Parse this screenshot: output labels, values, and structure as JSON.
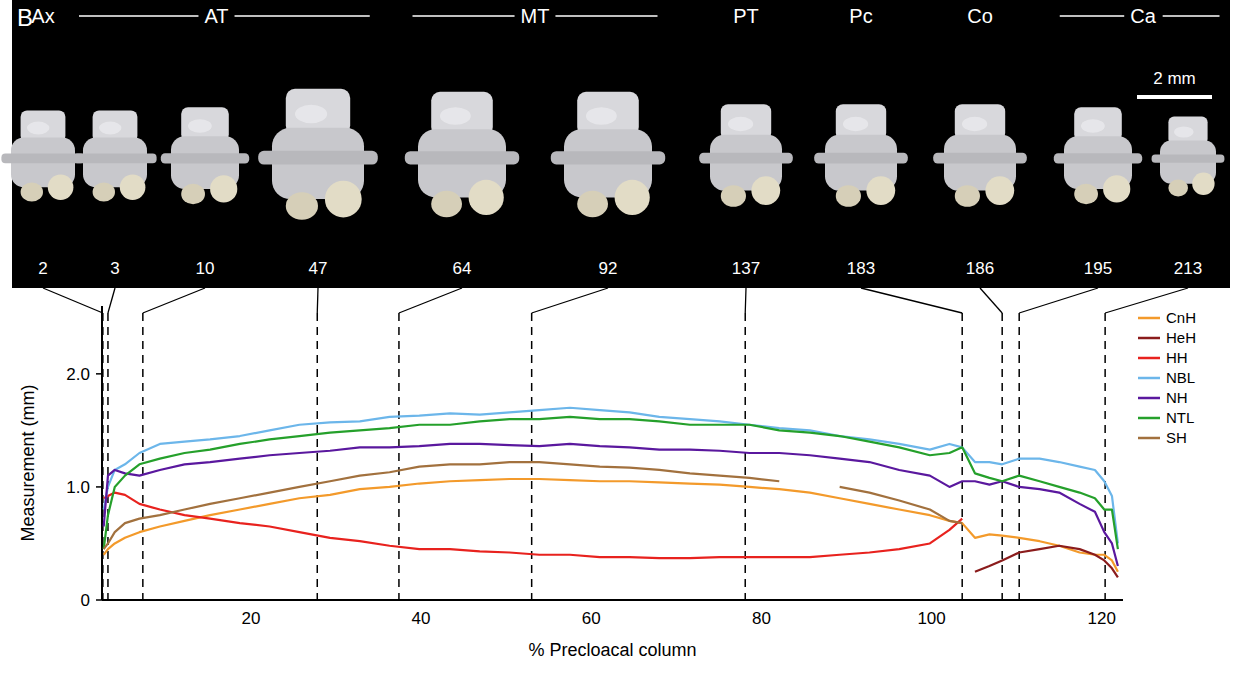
{
  "chart_data": {
    "type": "line",
    "panel_label": "B",
    "scale_bar": "2 mm",
    "xlabel": "% Precloacal column",
    "ylabel": "Measurement (mm)",
    "xlim": [
      2.5,
      122.5
    ],
    "ylim": [
      0,
      2.6
    ],
    "xticks": [
      20,
      40,
      60,
      80,
      100,
      120
    ],
    "yticks": [
      0,
      {
        "value": 1,
        "label": "1.0"
      },
      {
        "value": 2,
        "label": "2.0"
      }
    ],
    "legend": "top-right",
    "line_style": "solid",
    "regions": [
      {
        "label": "Ax",
        "vertebrae": [
          0
        ]
      },
      {
        "label": "AT",
        "vertebrae": [
          1,
          2,
          3
        ]
      },
      {
        "label": "MT",
        "vertebrae": [
          4,
          5
        ]
      },
      {
        "label": "PT",
        "vertebrae": [
          6
        ]
      },
      {
        "label": "Pc",
        "vertebrae": [
          7
        ]
      },
      {
        "label": "Co",
        "vertebrae": [
          8
        ]
      },
      {
        "label": "Ca",
        "vertebrae": [
          9,
          10
        ]
      }
    ],
    "vertebrae": [
      {
        "number": 2,
        "x": 2.6
      },
      {
        "number": 3,
        "x": 3.2
      },
      {
        "number": 10,
        "x": 7.3
      },
      {
        "number": 47,
        "x": 27.8
      },
      {
        "number": 64,
        "x": 37.4
      },
      {
        "number": 92,
        "x": 53.0
      },
      {
        "number": 137,
        "x": 78.1
      },
      {
        "number": 183,
        "x": 103.6
      },
      {
        "number": 186,
        "x": 108.3
      },
      {
        "number": 195,
        "x": 110.3
      },
      {
        "number": 213,
        "x": 120.4
      }
    ],
    "x": [
      2.7,
      3.2,
      4.0,
      5.2,
      6.9,
      9.3,
      12.2,
      15.2,
      18.7,
      22.2,
      25.7,
      29.3,
      32.8,
      36.3,
      39.8,
      43.4,
      46.9,
      50.4,
      53.9,
      57.5,
      61.0,
      64.5,
      68.0,
      71.6,
      75.1,
      78.6,
      82.1,
      85.7,
      89.2,
      92.7,
      96.2,
      99.8,
      102.1,
      103.6,
      105.1,
      106.8,
      108.3,
      110.3,
      112.7,
      115.0,
      117.4,
      119.2,
      120.3,
      121.2,
      121.9
    ],
    "series": [
      {
        "name": "CnH",
        "color": "#f39a2b",
        "values": [
          0.4,
          0.45,
          0.5,
          0.55,
          0.6,
          0.65,
          0.7,
          0.75,
          0.8,
          0.85,
          0.9,
          0.93,
          0.98,
          1.0,
          1.03,
          1.05,
          1.06,
          1.07,
          1.07,
          1.06,
          1.05,
          1.05,
          1.04,
          1.03,
          1.02,
          1.0,
          0.98,
          0.95,
          0.9,
          0.85,
          0.8,
          0.75,
          0.7,
          0.68,
          0.55,
          0.58,
          0.57,
          0.55,
          0.52,
          0.48,
          0.42,
          0.4,
          0.4,
          0.35,
          0.25
        ]
      },
      {
        "name": "HeH",
        "color": "#8b1c1c",
        "values": [
          null,
          null,
          null,
          null,
          null,
          null,
          null,
          null,
          null,
          null,
          null,
          null,
          null,
          null,
          null,
          null,
          null,
          null,
          null,
          null,
          null,
          null,
          null,
          null,
          null,
          null,
          null,
          null,
          null,
          null,
          null,
          null,
          null,
          null,
          0.25,
          0.3,
          0.35,
          0.42,
          0.45,
          0.48,
          0.45,
          0.4,
          0.35,
          0.28,
          0.2
        ]
      },
      {
        "name": "HH",
        "color": "#e8221e",
        "values": [
          0.9,
          0.92,
          0.95,
          0.93,
          0.85,
          0.8,
          0.75,
          0.72,
          0.68,
          0.65,
          0.6,
          0.55,
          0.52,
          0.48,
          0.45,
          0.45,
          0.43,
          0.42,
          0.4,
          0.4,
          0.38,
          0.38,
          0.37,
          0.37,
          0.38,
          0.38,
          0.38,
          0.38,
          0.4,
          0.42,
          0.45,
          0.5,
          0.62,
          0.72,
          null,
          null,
          null,
          null,
          null,
          null,
          null,
          null,
          null,
          null,
          null
        ]
      },
      {
        "name": "NBL",
        "color": "#6cb6ea",
        "values": [
          0.8,
          1.0,
          1.15,
          1.2,
          1.3,
          1.38,
          1.4,
          1.42,
          1.45,
          1.5,
          1.55,
          1.57,
          1.58,
          1.62,
          1.63,
          1.65,
          1.64,
          1.66,
          1.68,
          1.7,
          1.68,
          1.66,
          1.62,
          1.6,
          1.58,
          1.55,
          1.52,
          1.5,
          1.45,
          1.42,
          1.38,
          1.33,
          1.38,
          1.35,
          1.22,
          1.22,
          1.2,
          1.25,
          1.25,
          1.22,
          1.18,
          1.15,
          1.05,
          0.92,
          0.5
        ]
      },
      {
        "name": "NH",
        "color": "#5a189e",
        "values": [
          0.65,
          1.1,
          1.15,
          1.12,
          1.1,
          1.15,
          1.2,
          1.22,
          1.25,
          1.28,
          1.3,
          1.32,
          1.35,
          1.35,
          1.36,
          1.38,
          1.38,
          1.37,
          1.36,
          1.38,
          1.36,
          1.35,
          1.33,
          1.33,
          1.32,
          1.3,
          1.3,
          1.28,
          1.25,
          1.22,
          1.15,
          1.1,
          1.0,
          1.05,
          1.05,
          1.02,
          1.05,
          1.0,
          0.98,
          0.95,
          0.85,
          0.78,
          0.6,
          0.5,
          0.3
        ]
      },
      {
        "name": "NTL",
        "color": "#25a02b",
        "values": [
          0.45,
          0.75,
          1.0,
          1.1,
          1.2,
          1.25,
          1.3,
          1.33,
          1.38,
          1.42,
          1.45,
          1.48,
          1.5,
          1.52,
          1.55,
          1.55,
          1.58,
          1.6,
          1.6,
          1.62,
          1.6,
          1.6,
          1.58,
          1.55,
          1.55,
          1.55,
          1.5,
          1.48,
          1.45,
          1.4,
          1.35,
          1.28,
          1.3,
          1.35,
          1.12,
          1.08,
          1.05,
          1.1,
          1.05,
          1.0,
          0.95,
          0.9,
          0.8,
          0.8,
          0.45
        ]
      },
      {
        "name": "SH",
        "color": "#a2713e",
        "values": [
          0.45,
          0.5,
          0.6,
          0.68,
          0.72,
          0.75,
          0.8,
          0.85,
          0.9,
          0.95,
          1.0,
          1.05,
          1.1,
          1.13,
          1.18,
          1.2,
          1.2,
          1.22,
          1.22,
          1.2,
          1.18,
          1.17,
          1.15,
          1.12,
          1.1,
          1.08,
          1.05,
          null,
          1.0,
          0.95,
          0.88,
          0.8,
          0.7,
          0.68,
          null,
          null,
          null,
          null,
          null,
          null,
          null,
          null,
          null,
          null,
          null
        ]
      }
    ]
  }
}
